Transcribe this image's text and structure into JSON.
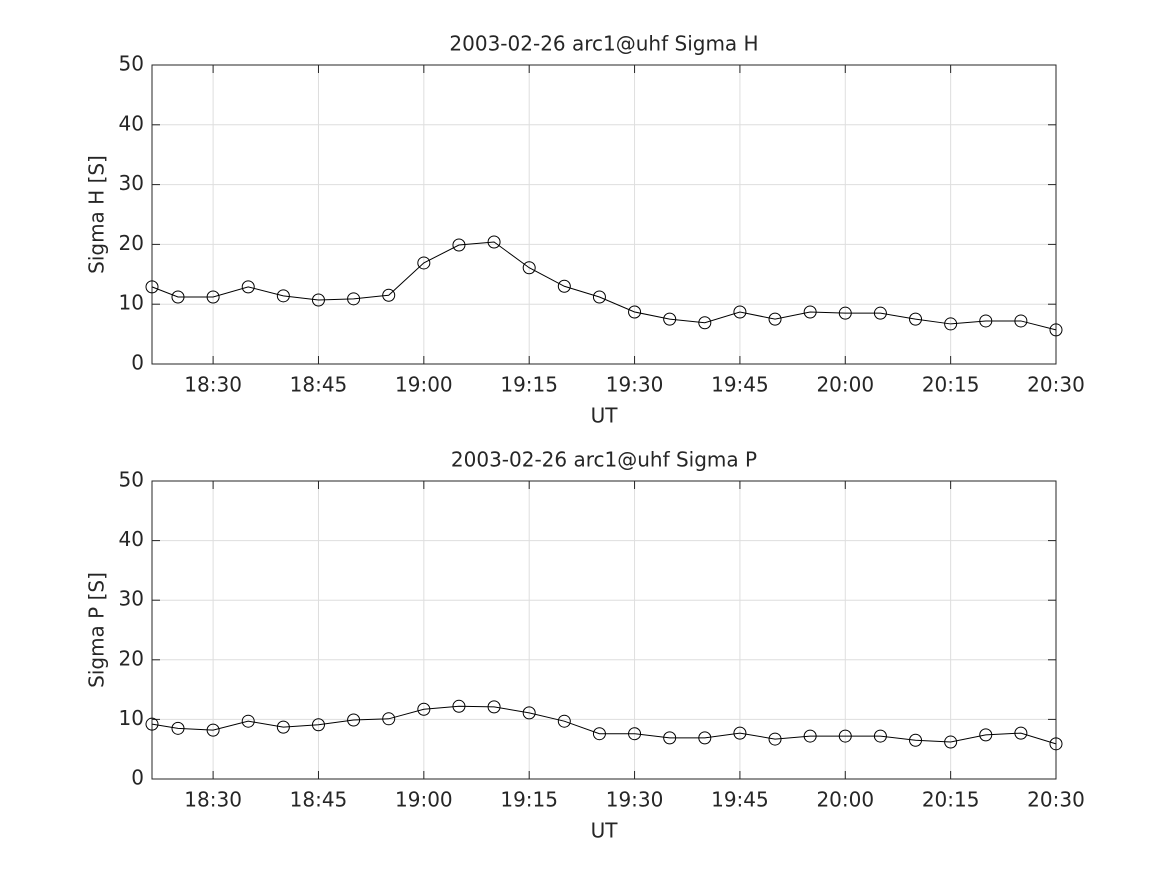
{
  "chart_data": [
    {
      "type": "line",
      "title": "2003-02-26  arc1@uhf Sigma H",
      "xlabel": "UT",
      "ylabel": "Sigma H [S]",
      "x": [
        1101.3,
        1105,
        1110,
        1115,
        1120,
        1125,
        1130,
        1135,
        1140,
        1145,
        1150,
        1155,
        1160,
        1165,
        1170,
        1175,
        1180,
        1185,
        1190,
        1195,
        1200,
        1205,
        1210,
        1215,
        1220,
        1225,
        1230
      ],
      "series": [
        {
          "color": "#000000",
          "values": [
            12.9,
            11.2,
            11.2,
            12.9,
            11.4,
            10.7,
            10.9,
            11.5,
            16.9,
            19.9,
            20.4,
            16.1,
            13.0,
            11.2,
            8.7,
            7.5,
            6.9,
            8.7,
            7.5,
            8.7,
            8.5,
            8.5,
            7.5,
            6.7,
            7.2,
            7.2,
            5.7
          ]
        }
      ],
      "xlim": [
        1101.3,
        1230
      ],
      "xticks": [
        {
          "value": 1110,
          "label": "18:30"
        },
        {
          "value": 1125,
          "label": "18:45"
        },
        {
          "value": 1140,
          "label": "19:00"
        },
        {
          "value": 1155,
          "label": "19:15"
        },
        {
          "value": 1170,
          "label": "19:30"
        },
        {
          "value": 1185,
          "label": "19:45"
        },
        {
          "value": 1200,
          "label": "20:00"
        },
        {
          "value": 1215,
          "label": "20:15"
        },
        {
          "value": 1230,
          "label": "20:30"
        }
      ],
      "ylim": [
        0,
        50
      ],
      "yticks": [
        0,
        10,
        20,
        30,
        40,
        50
      ],
      "grid": true,
      "marker": "circle"
    },
    {
      "type": "line",
      "title": "2003-02-26  arc1@uhf Sigma P",
      "xlabel": "UT",
      "ylabel": "Sigma P [S]",
      "x": [
        1101.3,
        1105,
        1110,
        1115,
        1120,
        1125,
        1130,
        1135,
        1140,
        1145,
        1150,
        1155,
        1160,
        1165,
        1170,
        1175,
        1180,
        1185,
        1190,
        1195,
        1200,
        1205,
        1210,
        1215,
        1220,
        1225,
        1230
      ],
      "series": [
        {
          "color": "#000000",
          "values": [
            9.2,
            8.5,
            8.2,
            9.7,
            8.7,
            9.1,
            9.9,
            10.1,
            11.7,
            12.2,
            12.1,
            11.1,
            9.7,
            7.6,
            7.6,
            6.9,
            6.9,
            7.7,
            6.7,
            7.2,
            7.2,
            7.2,
            6.5,
            6.2,
            7.4,
            7.7,
            5.9
          ]
        }
      ],
      "xlim": [
        1101.3,
        1230
      ],
      "xticks": [
        {
          "value": 1110,
          "label": "18:30"
        },
        {
          "value": 1125,
          "label": "18:45"
        },
        {
          "value": 1140,
          "label": "19:00"
        },
        {
          "value": 1155,
          "label": "19:15"
        },
        {
          "value": 1170,
          "label": "19:30"
        },
        {
          "value": 1185,
          "label": "19:45"
        },
        {
          "value": 1200,
          "label": "20:00"
        },
        {
          "value": 1215,
          "label": "20:15"
        },
        {
          "value": 1230,
          "label": "20:30"
        }
      ],
      "ylim": [
        0,
        50
      ],
      "yticks": [
        0,
        10,
        20,
        30,
        40,
        50
      ],
      "grid": true,
      "marker": "circle"
    }
  ]
}
